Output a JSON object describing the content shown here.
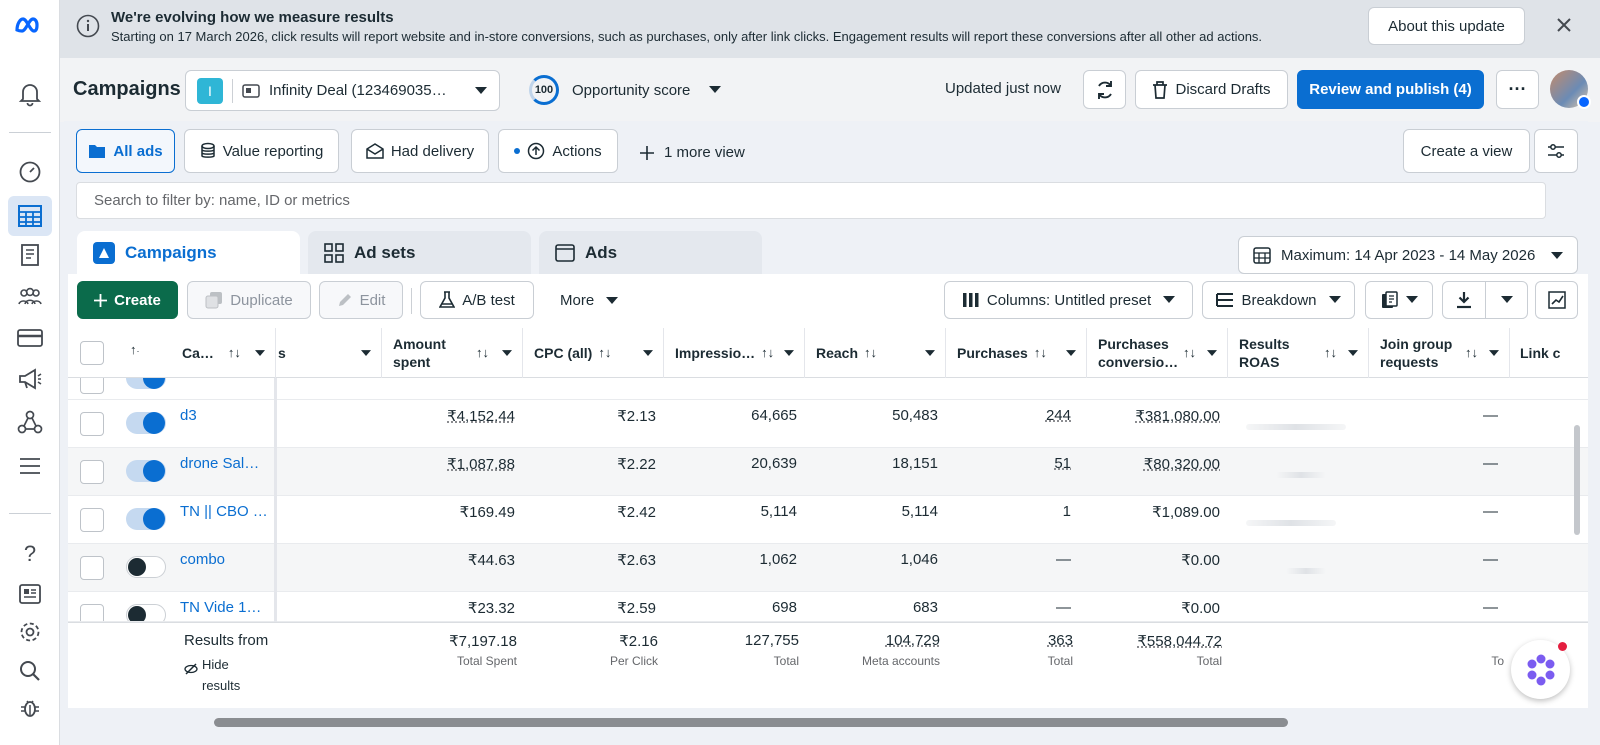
{
  "banner": {
    "title": "We're evolving how we measure results",
    "text": "Starting on 17 March 2026, click results will report website and in-store conversions, such as purchases, only after link clicks. Engagement results will report these conversions after all other ad actions.",
    "about_label": "About this update"
  },
  "header": {
    "title": "Campaigns",
    "account_initial": "I",
    "account_name": "Infinity Deal (123469035…",
    "score_value": "100",
    "score_label": "Opportunity score",
    "updated": "Updated just now",
    "discard_label": "Discard Drafts",
    "review_label": "Review and publish (4)"
  },
  "views": {
    "all_ads": "All ads",
    "value_reporting": "Value reporting",
    "had_delivery": "Had delivery",
    "actions": "Actions",
    "more_view": "1 more view",
    "create_view": "Create a view"
  },
  "search": {
    "placeholder": "Search to filter by: name, ID or metrics"
  },
  "tabs": {
    "campaigns": "Campaigns",
    "ad_sets": "Ad sets",
    "ads": "Ads"
  },
  "date_range": "Maximum: 14 Apr 2023 - 14 May 2026",
  "toolbar": {
    "create": "Create",
    "duplicate": "Duplicate",
    "edit": "Edit",
    "ab_test": "A/B test",
    "more": "More",
    "columns": "Columns: Untitled preset",
    "breakdown": "Breakdown"
  },
  "table": {
    "headers": {
      "campaign": "Ca…",
      "partial": "s",
      "amount_l1": "Amount",
      "amount_l2": "spent",
      "cpc": "CPC (all)",
      "impressions": "Impressio…",
      "reach": "Reach",
      "purchases": "Purchases",
      "pconv_l1": "Purchases",
      "pconv_l2": "conversio…",
      "roas_l1": "Results",
      "roas_l2": "ROAS",
      "join_l1": "Join group",
      "join_l2": "requests",
      "link": "Link c"
    },
    "rows": [
      {
        "name": "d3",
        "amount": "₹4,152.44",
        "cpc": "₹2.13",
        "impressions": "64,665",
        "reach": "50,483",
        "purchases": "244",
        "conv": "₹381,080.00",
        "join": "—"
      },
      {
        "name": "drone Sal…",
        "amount": "₹1,087.88",
        "cpc": "₹2.22",
        "impressions": "20,639",
        "reach": "18,151",
        "purchases": "51",
        "conv": "₹80,320.00",
        "join": "—"
      },
      {
        "name": "TN || CBO …",
        "amount": "₹169.49",
        "cpc": "₹2.42",
        "impressions": "5,114",
        "reach": "5,114",
        "purchases": "1",
        "conv": "₹1,089.00",
        "join": "—"
      },
      {
        "name": "combo",
        "amount": "₹44.63",
        "cpc": "₹2.63",
        "impressions": "1,062",
        "reach": "1,046",
        "purchases": "—",
        "conv": "₹0.00",
        "join": "—"
      },
      {
        "name": "TN Vide 1…",
        "amount": "₹23.32",
        "cpc": "₹2.59",
        "impressions": "698",
        "reach": "683",
        "purchases": "—",
        "conv": "₹0.00",
        "join": "—"
      }
    ],
    "footer": {
      "label": "Results from",
      "hide_l1": "Hide",
      "hide_l2": "results",
      "amount": "₹7,197.18",
      "amount_sub": "Total Spent",
      "cpc": "₹2.16",
      "cpc_sub": "Per Click",
      "impressions": "127,755",
      "impressions_sub": "Total",
      "reach": "104,729",
      "reach_sub": "Meta accounts",
      "purchases": "363",
      "purchases_sub": "Total",
      "conv": "₹558,044.72",
      "conv_sub": "Total",
      "join_sub": "To"
    }
  },
  "colors": {
    "accent": "#0a6ed1",
    "create": "#0b6b4b",
    "rail_active": "#dbe6f5"
  }
}
